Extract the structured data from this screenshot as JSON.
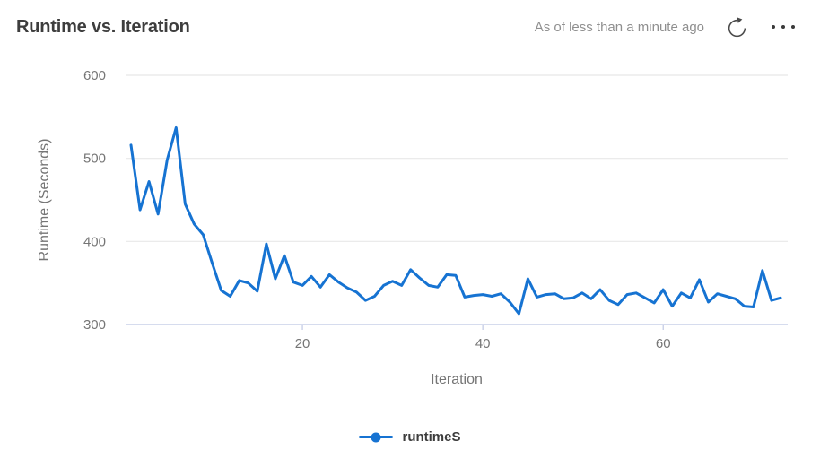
{
  "header": {
    "title": "Runtime vs. Iteration",
    "freshness": "As of less than a minute ago"
  },
  "chart_data": {
    "type": "line",
    "title": "Runtime vs. Iteration",
    "xlabel": "Iteration",
    "ylabel": "Runtime (Seconds)",
    "x_ticks": [
      20,
      40,
      60
    ],
    "y_ticks": [
      300,
      400,
      500,
      600
    ],
    "xlim": [
      0.4,
      73.8
    ],
    "ylim": [
      300,
      600
    ],
    "grid": true,
    "legend_position": "bottom",
    "x": [
      1,
      2,
      3,
      4,
      5,
      6,
      7,
      8,
      9,
      10,
      11,
      12,
      13,
      14,
      15,
      16,
      17,
      18,
      19,
      20,
      21,
      22,
      23,
      24,
      25,
      26,
      27,
      28,
      29,
      30,
      31,
      32,
      33,
      34,
      35,
      36,
      37,
      38,
      39,
      40,
      41,
      42,
      43,
      44,
      45,
      46,
      47,
      48,
      49,
      50,
      51,
      52,
      53,
      54,
      55,
      56,
      57,
      58,
      59,
      60,
      61,
      62,
      63,
      64,
      65,
      66,
      67,
      68,
      69,
      70,
      71,
      72,
      73
    ],
    "series": [
      {
        "name": "runtimeS",
        "color": "#1673d2",
        "values": [
          516,
          438,
          472,
          433,
          498,
          537,
          445,
          421,
          408,
          374,
          341,
          334,
          353,
          350,
          340,
          397,
          355,
          383,
          351,
          347,
          358,
          345,
          360,
          351,
          344,
          339,
          329,
          334,
          347,
          352,
          347,
          366,
          356,
          347,
          345,
          360,
          359,
          333,
          335,
          336,
          334,
          337,
          327,
          313,
          355,
          333,
          336,
          337,
          331,
          332,
          338,
          331,
          342,
          329,
          324,
          336,
          338,
          332,
          326,
          342,
          322,
          338,
          332,
          354,
          327,
          337,
          334,
          331,
          322,
          321,
          365,
          329,
          332
        ]
      }
    ]
  },
  "legend": {
    "items": [
      {
        "label": "runtimeS"
      }
    ]
  },
  "icons": {
    "refresh": "refresh-icon",
    "more": "ellipsis-icon"
  },
  "colors": {
    "accent": "#1673d2",
    "grid": "#e8e8e8",
    "axis": "#c9d0e8",
    "tick_text": "#757575",
    "title_text": "#3d3d3d",
    "muted_text": "#8f8f8f",
    "icon": "#4a4a4a"
  }
}
